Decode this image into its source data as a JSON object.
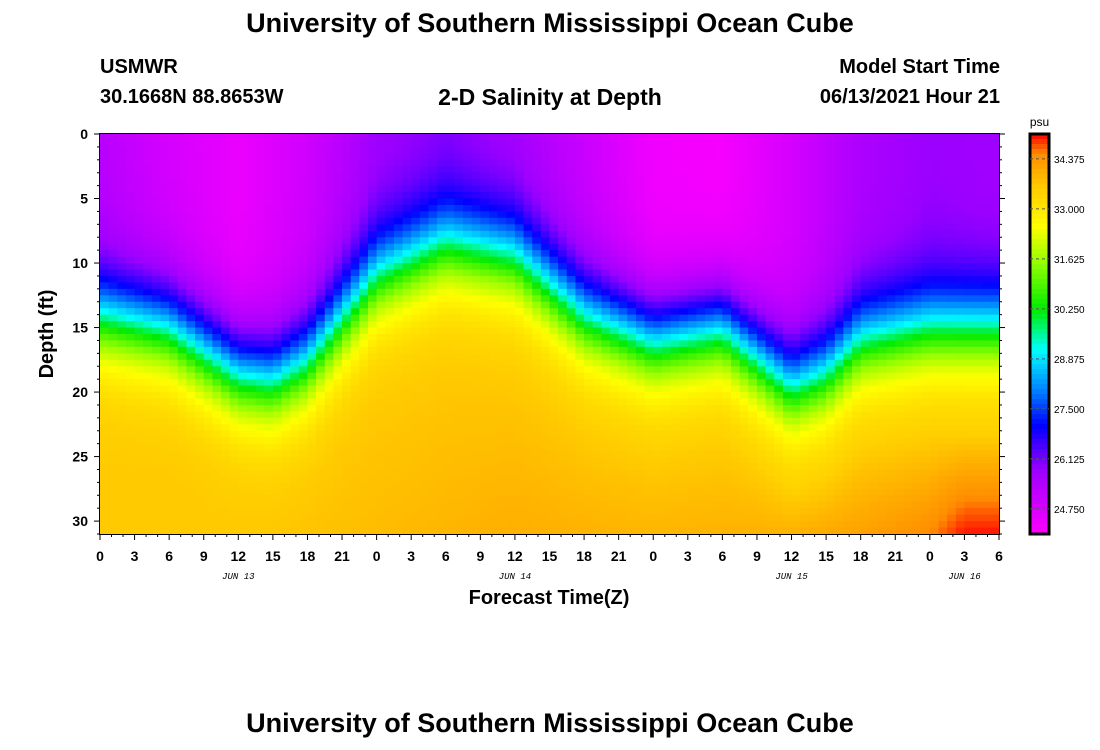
{
  "header": {
    "title": "University of Southern Mississippi Ocean Cube",
    "station": "USMWR",
    "coords": "30.1668N  88.8653W",
    "chart_title": "2-D Salinity at Depth",
    "model_label": "Model Start Time",
    "model_time": "06/13/2021 Hour 21"
  },
  "footer": {
    "title": "University of Southern Mississippi Ocean Cube"
  },
  "chart_data": {
    "type": "heatmap",
    "title": "2-D Salinity at Depth",
    "xlabel": "Forecast Time(Z)",
    "ylabel": "Depth (ft)",
    "x_tick_labels": [
      "0",
      "3",
      "6",
      "9",
      "12",
      "15",
      "18",
      "21",
      "0",
      "3",
      "6",
      "9",
      "12",
      "15",
      "18",
      "21",
      "0",
      "3",
      "6",
      "9",
      "12",
      "15",
      "18",
      "21",
      "0",
      "3",
      "6"
    ],
    "date_labels": [
      {
        "label": "JUN 13",
        "hour": 12
      },
      {
        "label": "JUN 14",
        "hour": 36
      },
      {
        "label": "JUN 15",
        "hour": 60
      },
      {
        "label": "JUN 16",
        "hour": 75
      }
    ],
    "xlim_hours": [
      0,
      78
    ],
    "y_ticks": [
      0,
      5,
      10,
      15,
      20,
      25,
      30
    ],
    "ylim": [
      0,
      31
    ],
    "colorbar": {
      "unit": "psu",
      "ticks": [
        "34.375",
        "33.000",
        "31.625",
        "30.250",
        "28.875",
        "27.500",
        "26.125",
        "24.750"
      ],
      "range": [
        24.06,
        35.06
      ]
    },
    "halocline_depth_ft": {
      "hours": [
        0,
        6,
        12,
        15,
        18,
        24,
        30,
        36,
        42,
        48,
        54,
        60,
        63,
        66,
        72,
        78
      ],
      "values": [
        14,
        15,
        18.5,
        19,
        17.5,
        11,
        8.5,
        9.5,
        14,
        16,
        15,
        19.5,
        18.5,
        16,
        15,
        15
      ]
    },
    "surface_salinity_psu": {
      "hours": [
        0,
        6,
        12,
        18,
        24,
        30,
        36,
        42,
        48,
        54,
        60,
        66,
        72,
        78
      ],
      "values": [
        25.3,
        24.8,
        24.4,
        24.9,
        25.7,
        25.9,
        25.6,
        25.0,
        24.3,
        24.2,
        24.8,
        25.5,
        25.8,
        25.7
      ]
    },
    "bottom_salinity_psu": {
      "hours": [
        0,
        12,
        24,
        36,
        48,
        60,
        66,
        72,
        75,
        78
      ],
      "values": [
        33.6,
        33.6,
        33.8,
        34.0,
        33.9,
        34.0,
        34.2,
        34.5,
        35.0,
        35.0
      ]
    }
  }
}
